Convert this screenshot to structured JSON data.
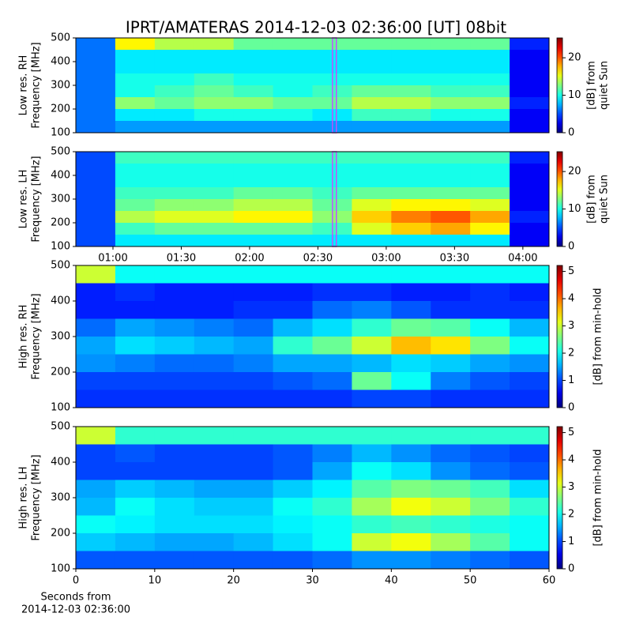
{
  "title": "IPRT/AMATERAS 2014-12-03 02:36:00 [UT]   08bit",
  "chart_data": [
    {
      "type": "heatmap",
      "colormap": "jet",
      "ylabel": [
        "Low res. RH",
        "Frequency [MHz]"
      ],
      "clabel": [
        "[dB] from",
        "quiet Sun"
      ],
      "xlim": [
        43.7,
        251.5
      ],
      "ylim": [
        100,
        500
      ],
      "yticks": [
        100,
        200,
        300,
        400,
        500
      ],
      "clim": [
        0,
        25.3
      ],
      "cticks": [
        0,
        10,
        20
      ],
      "vspan": [
        156.4,
        158.1
      ],
      "vspan_color": "#c050ff",
      "z": [
        [
          6,
          16,
          14,
          14,
          12,
          12,
          12,
          12,
          12,
          12,
          12,
          4
        ],
        [
          6,
          9,
          9,
          9,
          9,
          9,
          9,
          9,
          9,
          9,
          9,
          3
        ],
        [
          6,
          9,
          9,
          9,
          9,
          9,
          9,
          9,
          9,
          9,
          9,
          3
        ],
        [
          6,
          10,
          10,
          11,
          10,
          10,
          10,
          10,
          10,
          10,
          10,
          3
        ],
        [
          6,
          10,
          11,
          12,
          11,
          10,
          11,
          12,
          12,
          11,
          11,
          3
        ],
        [
          6,
          13,
          12,
          13,
          13,
          12,
          12,
          14,
          14,
          13,
          13,
          4
        ],
        [
          6,
          9,
          9,
          10,
          10,
          10,
          9,
          11,
          11,
          10,
          10,
          3
        ],
        [
          6,
          7,
          7,
          7,
          7,
          7,
          7,
          7,
          7,
          7,
          7,
          3
        ]
      ]
    },
    {
      "type": "heatmap",
      "colormap": "jet",
      "ylabel": [
        "Low res. LH",
        "Frequency [MHz]"
      ],
      "clabel": [
        "[dB] from",
        "quiet Sun"
      ],
      "xlim": [
        43.7,
        251.5
      ],
      "xticks": [
        {
          "value": 60,
          "label": "01:00"
        },
        {
          "value": 90,
          "label": "01:30"
        },
        {
          "value": 120,
          "label": "02:00"
        },
        {
          "value": 150,
          "label": "02:30"
        },
        {
          "value": 180,
          "label": "03:00"
        },
        {
          "value": 210,
          "label": "03:30"
        },
        {
          "value": 240,
          "label": "04:00"
        }
      ],
      "ylim": [
        100,
        500
      ],
      "yticks": [
        100,
        200,
        300,
        400,
        500
      ],
      "clim": [
        0,
        25.3
      ],
      "cticks": [
        0,
        10,
        20
      ],
      "vspan": [
        156.4,
        158.1
      ],
      "vspan_color": "#c050ff",
      "z": [
        [
          5,
          11,
          11,
          11,
          11,
          11,
          11,
          11,
          11,
          11,
          11,
          4
        ],
        [
          5,
          10,
          10,
          10,
          10,
          10,
          10,
          10,
          10,
          10,
          10,
          3
        ],
        [
          5,
          10,
          10,
          10,
          10,
          10,
          10,
          10,
          10,
          10,
          10,
          3
        ],
        [
          5,
          11,
          11,
          11,
          12,
          12,
          11,
          12,
          12,
          12,
          12,
          3
        ],
        [
          5,
          12,
          13,
          13,
          14,
          14,
          12,
          15,
          16,
          16,
          15,
          3
        ],
        [
          5,
          14,
          15,
          15,
          16,
          16,
          13,
          17,
          19,
          20,
          18,
          4
        ],
        [
          5,
          11,
          12,
          12,
          12,
          12,
          11,
          15,
          17,
          18,
          16,
          3
        ],
        [
          5,
          9,
          9,
          9,
          9,
          9,
          9,
          9,
          9,
          9,
          9,
          3
        ]
      ]
    },
    {
      "type": "heatmap",
      "colormap": "jet",
      "ylabel": [
        "High res. RH",
        "Frequency [MHz]"
      ],
      "clabel": [
        "[dB] from min-hold"
      ],
      "xlim": [
        0,
        60
      ],
      "ylim": [
        100,
        500
      ],
      "yticks": [
        100,
        200,
        300,
        400,
        500
      ],
      "clim": [
        0,
        5.22
      ],
      "cticks": [
        0,
        1,
        2,
        3,
        4,
        5
      ],
      "z": [
        [
          3,
          2,
          2,
          2,
          2,
          2,
          2,
          2,
          2,
          2,
          2,
          2
        ],
        [
          0.8,
          0.9,
          0.8,
          0.8,
          0.8,
          0.8,
          0.9,
          0.9,
          0.8,
          0.8,
          0.9,
          0.8
        ],
        [
          0.8,
          0.8,
          0.8,
          0.8,
          0.9,
          0.9,
          1.2,
          1.3,
          1.1,
          0.9,
          0.9,
          0.9
        ],
        [
          1.2,
          1.5,
          1.4,
          1.3,
          1.2,
          1.6,
          1.8,
          2.2,
          2.5,
          2.4,
          2.0,
          1.6
        ],
        [
          1.5,
          1.8,
          1.7,
          1.6,
          1.5,
          2.2,
          2.5,
          3.0,
          3.6,
          3.4,
          2.6,
          2.0
        ],
        [
          1.4,
          1.3,
          1.2,
          1.2,
          1.3,
          1.5,
          1.5,
          1.6,
          1.8,
          1.7,
          1.5,
          1.4
        ],
        [
          1.0,
          1.0,
          1.0,
          1.0,
          1.0,
          1.1,
          1.2,
          2.5,
          2.0,
          1.3,
          1.1,
          1.0
        ],
        [
          0.9,
          0.9,
          0.9,
          0.9,
          0.9,
          0.9,
          0.9,
          1.0,
          1.0,
          0.9,
          0.9,
          0.9
        ]
      ]
    },
    {
      "type": "heatmap",
      "colormap": "jet",
      "ylabel": [
        "High res. LH",
        "Frequency [MHz]"
      ],
      "clabel": [
        "[dB] from min-hold"
      ],
      "xlabel": [
        "Seconds from",
        "2014-12-03 02:36:00"
      ],
      "xlim": [
        0,
        60
      ],
      "xticks": [
        0,
        10,
        20,
        30,
        40,
        50,
        60
      ],
      "ylim": [
        100,
        500
      ],
      "yticks": [
        100,
        200,
        300,
        400,
        500
      ],
      "clim": [
        0,
        5.22
      ],
      "cticks": [
        0,
        1,
        2,
        3,
        4,
        5
      ],
      "z": [
        [
          3,
          2.2,
          2.2,
          2.2,
          2.2,
          2.2,
          2.2,
          2.2,
          2.2,
          2.2,
          2.2,
          2.2
        ],
        [
          1.0,
          1.1,
          1.0,
          1.0,
          1.0,
          1.1,
          1.3,
          1.6,
          1.4,
          1.2,
          1.1,
          1.0
        ],
        [
          1.0,
          1.0,
          1.0,
          1.0,
          1.0,
          1.1,
          1.5,
          2.0,
          1.8,
          1.4,
          1.2,
          1.1
        ],
        [
          1.5,
          1.7,
          1.6,
          1.5,
          1.5,
          1.7,
          1.9,
          2.4,
          2.6,
          2.5,
          2.3,
          1.8
        ],
        [
          1.6,
          2.0,
          1.8,
          1.7,
          1.7,
          2.0,
          2.2,
          2.8,
          3.2,
          3.0,
          2.6,
          2.2
        ],
        [
          2.0,
          1.9,
          1.8,
          1.8,
          1.8,
          1.9,
          2.0,
          2.2,
          2.3,
          2.2,
          2.1,
          2.0
        ],
        [
          1.7,
          1.6,
          1.5,
          1.5,
          1.6,
          1.8,
          2.0,
          3.0,
          3.2,
          2.8,
          2.4,
          2.0
        ],
        [
          1.1,
          1.1,
          1.1,
          1.1,
          1.1,
          1.1,
          1.2,
          1.4,
          1.4,
          1.3,
          1.2,
          1.1
        ]
      ]
    }
  ]
}
